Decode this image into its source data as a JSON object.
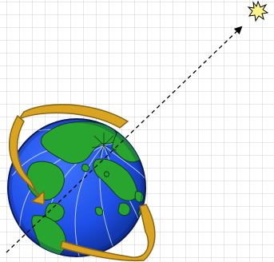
{
  "scene": {
    "background": "graph-paper-grid",
    "elements": [
      "earth-globe",
      "rotation-arrow",
      "sun-direction-ray",
      "sun-star-icon"
    ]
  },
  "colors": {
    "grid_line": "#d0d0d0",
    "ocean": "#1f4fe8",
    "ocean_shadow": "#0a2a8a",
    "land": "#27a52f",
    "meridian": "#cfe0ff",
    "arrow_fill": "#d9a520",
    "arrow_stroke": "#8a6414",
    "ray": "#000000",
    "sun_fill": "#fff58a",
    "sun_stroke": "#000000"
  }
}
